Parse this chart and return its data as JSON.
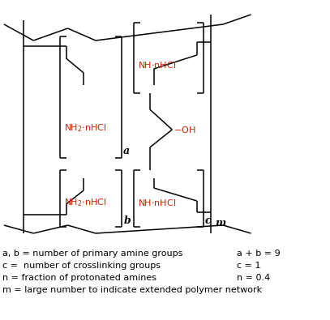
{
  "bg_color": "#ffffff",
  "text_color": "#000000",
  "red_color": "#cc2200",
  "blue_color": "#0000cc",
  "legend_lines": [
    {
      "text": "a, b = number of primary amine groups",
      "value": "a + b = 9"
    },
    {
      "text": "c =  number of crosslinking groups",
      "value": "c = 1"
    },
    {
      "text": "n = fraction of protonated amines",
      "value": "n = 0.4"
    },
    {
      "text": "m = large number to indicate extended polymer network",
      "value": ""
    }
  ],
  "fontsize": 8.0,
  "label_fontsize": 9.0
}
